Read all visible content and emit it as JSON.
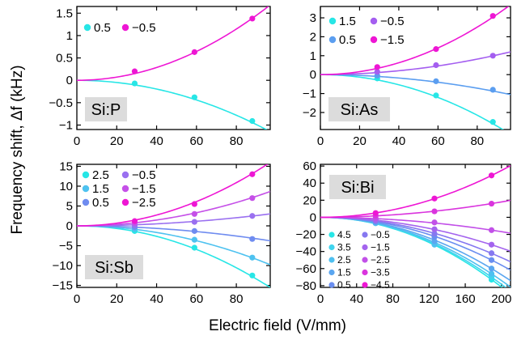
{
  "axes": {
    "ylabel": "Frequency shift, Δf (kHz)",
    "xlabel": "Electric field (V/mm)"
  },
  "chart_data": [
    {
      "type": "scatter",
      "panel_label": "Si:P",
      "xlim": [
        0,
        97
      ],
      "ylim": [
        -1.1,
        1.65
      ],
      "xticks": [
        0,
        20,
        40,
        60,
        80
      ],
      "yticks": [
        -1,
        -0.5,
        0,
        0.5,
        1,
        1.5
      ],
      "ytick_labels": [
        "−1",
        "−0.5",
        "0",
        "0.5",
        "1",
        "1.5"
      ],
      "legend_placement": "top-left",
      "series": [
        {
          "name": "0.5",
          "color": "#27e6e6",
          "coef": -0.000122,
          "points": [
            [
              29,
              -0.07
            ],
            [
              59,
              -0.38
            ],
            [
              88,
              -0.91
            ]
          ]
        },
        {
          "name": "−0.5",
          "color": "#ee16d4",
          "coef": 0.000179,
          "points": [
            [
              29,
              0.2
            ],
            [
              59,
              0.63
            ],
            [
              88,
              1.38
            ]
          ]
        }
      ]
    },
    {
      "type": "scatter",
      "panel_label": "Si:As",
      "xlim": [
        0,
        97
      ],
      "ylim": [
        -2.9,
        3.6
      ],
      "xticks": [
        0,
        20,
        40,
        60,
        80
      ],
      "yticks": [
        -2,
        -1,
        0,
        1,
        2,
        3
      ],
      "ytick_labels": [
        "−2",
        "−1",
        "0",
        "1",
        "2",
        "3"
      ],
      "legend_placement": "top-left",
      "series": [
        {
          "name": "1.5",
          "color": "#27e6e6",
          "coef": -0.000335,
          "points": [
            [
              29,
              -0.2
            ],
            [
              59,
              -1.1
            ],
            [
              88,
              -2.5
            ]
          ]
        },
        {
          "name": "0.5",
          "color": "#5b9ef0",
          "coef": -0.000112,
          "points": [
            [
              29,
              -0.05
            ],
            [
              59,
              -0.35
            ],
            [
              88,
              -0.8
            ]
          ]
        },
        {
          "name": "−0.5",
          "color": "#a45ef0",
          "coef": 0.000128,
          "points": [
            [
              29,
              0.15
            ],
            [
              59,
              0.5
            ],
            [
              88,
              1.0
            ]
          ]
        },
        {
          "name": "−1.5",
          "color": "#ee16d4",
          "coef": 0.000392,
          "points": [
            [
              29,
              0.4
            ],
            [
              59,
              1.35
            ],
            [
              88,
              3.1
            ]
          ]
        }
      ]
    },
    {
      "type": "scatter",
      "panel_label": "Si:Sb",
      "xlim": [
        0,
        97
      ],
      "ylim": [
        -15.5,
        15.5
      ],
      "xticks": [
        0,
        20,
        40,
        60,
        80
      ],
      "yticks": [
        -15,
        -10,
        -5,
        0,
        5,
        10,
        15
      ],
      "ytick_labels": [
        "−15",
        "−10",
        "−5",
        "0",
        "5",
        "10",
        "15"
      ],
      "legend_placement": "top-left",
      "series": [
        {
          "name": "2.5",
          "color": "#27e6e6",
          "coef": -0.00165,
          "points": [
            [
              29,
              -1.3
            ],
            [
              59,
              -5.5
            ],
            [
              88,
              -12.5
            ]
          ]
        },
        {
          "name": "1.5",
          "color": "#4ec2f0",
          "coef": -0.00104,
          "points": [
            [
              29,
              -0.8
            ],
            [
              59,
              -3.5
            ],
            [
              88,
              -8.0
            ]
          ]
        },
        {
          "name": "0.5",
          "color": "#6f8cf0",
          "coef": -0.0004,
          "points": [
            [
              29,
              -0.3
            ],
            [
              59,
              -1.3
            ],
            [
              88,
              -3.3
            ]
          ]
        },
        {
          "name": "−0.5",
          "color": "#9a70f0",
          "coef": 0.00032,
          "points": [
            [
              29,
              0.2
            ],
            [
              59,
              1.0
            ],
            [
              88,
              2.5
            ]
          ]
        },
        {
          "name": "−1.5",
          "color": "#c550e8",
          "coef": 0.00092,
          "points": [
            [
              29,
              0.7
            ],
            [
              59,
              3.0
            ],
            [
              88,
              7.0
            ]
          ]
        },
        {
          "name": "−2.5",
          "color": "#ee16d4",
          "coef": 0.0017,
          "points": [
            [
              29,
              1.2
            ],
            [
              59,
              5.5
            ],
            [
              88,
              13.0
            ]
          ]
        }
      ]
    },
    {
      "type": "scatter",
      "panel_label": "Si:Bi",
      "xlim": [
        0,
        210
      ],
      "ylim": [
        -82,
        62
      ],
      "xticks": [
        0,
        40,
        80,
        120,
        160,
        200
      ],
      "yticks": [
        -80,
        -60,
        -40,
        -20,
        0,
        20,
        40,
        60
      ],
      "ytick_labels": [
        "−80",
        "−60",
        "−40",
        "−20",
        "0",
        "20",
        "40",
        "60"
      ],
      "legend_placement": "bottom-left",
      "series": [
        {
          "name": "4.5",
          "color": "#27e6e6",
          "coef": -0.00204,
          "points": [
            [
              61,
              -5
            ],
            [
              126,
              -30
            ],
            [
              189,
              -73
            ]
          ]
        },
        {
          "name": "3.5",
          "color": "#3fd4ee",
          "coef": -0.00196,
          "points": [
            [
              61,
              -6
            ],
            [
              126,
              -31
            ],
            [
              189,
              -70
            ]
          ]
        },
        {
          "name": "2.5",
          "color": "#4ec0f0",
          "coef": -0.00185,
          "points": [
            [
              61,
              -7
            ],
            [
              126,
              -32
            ],
            [
              189,
              -66
            ]
          ]
        },
        {
          "name": "1.5",
          "color": "#5aa6f0",
          "coef": -0.00168,
          "points": [
            [
              61,
              -6
            ],
            [
              126,
              -28
            ],
            [
              189,
              -60
            ]
          ]
        },
        {
          "name": "0.5",
          "color": "#6a8ef0",
          "coef": -0.0014,
          "points": [
            [
              61,
              -5
            ],
            [
              126,
              -23
            ],
            [
              189,
              -50
            ]
          ]
        },
        {
          "name": "−0.5",
          "color": "#8678f0",
          "coef": -0.00118,
          "points": [
            [
              61,
              -4
            ],
            [
              126,
              -19
            ],
            [
              189,
              -42
            ]
          ]
        },
        {
          "name": "−1.5",
          "color": "#a464ee",
          "coef": -0.0009,
          "points": [
            [
              61,
              -3
            ],
            [
              126,
              -14
            ],
            [
              189,
              -32
            ]
          ]
        },
        {
          "name": "−2.5",
          "color": "#c250e8",
          "coef": -0.00042,
          "points": [
            [
              61,
              -1
            ],
            [
              126,
              -6
            ],
            [
              189,
              -15
            ]
          ]
        },
        {
          "name": "−3.5",
          "color": "#da34de",
          "coef": 0.00045,
          "points": [
            [
              61,
              2
            ],
            [
              126,
              7
            ],
            [
              189,
              16
            ]
          ]
        },
        {
          "name": "−4.5",
          "color": "#ee16d4",
          "coef": 0.00137,
          "points": [
            [
              61,
              5
            ],
            [
              126,
              22
            ],
            [
              189,
              49
            ]
          ]
        }
      ]
    }
  ]
}
